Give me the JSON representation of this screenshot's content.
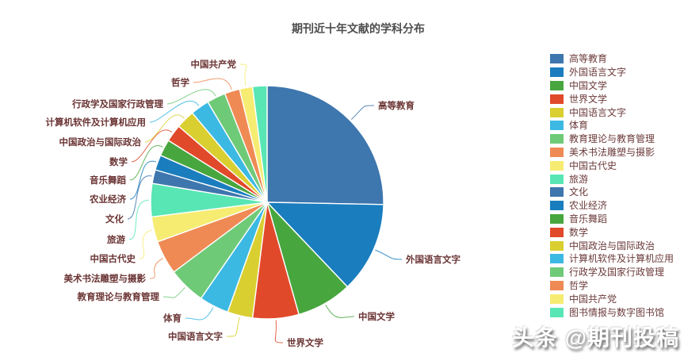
{
  "title": "期刊近十年文献的学科分布",
  "watermark": "头条 @期刊投稿",
  "colors": {
    "background": "#ffffff",
    "title_text": "#4d4d4d",
    "label_text": "#6b3434",
    "slice_border": "#ffffff",
    "palette_cycle": [
      "#3e76ae",
      "#1a7dbe",
      "#48a63e",
      "#e1492b",
      "#d9cf30",
      "#3cb9e3",
      "#6fca78",
      "#ef8a54",
      "#f6ec72",
      "#58e6b4"
    ]
  },
  "chart_data": {
    "type": "pie",
    "title": "期刊近十年文献的学科分布",
    "start_angle_deg": 90,
    "direction": "clockwise",
    "legend_position": "right",
    "value_unit": "percent (estimated from slice angles)",
    "series": [
      {
        "name": "高等教育",
        "value": 25.3
      },
      {
        "name": "外国语言文字",
        "value": 12.6
      },
      {
        "name": "中国文学",
        "value": 7.7
      },
      {
        "name": "世界文学",
        "value": 6.4
      },
      {
        "name": "中国语言文字",
        "value": 3.5
      },
      {
        "name": "体育",
        "value": 4.1
      },
      {
        "name": "教育理论与教育管理",
        "value": 5.2
      },
      {
        "name": "美术书法雕塑与摄影",
        "value": 4.7
      },
      {
        "name": "中国古代史",
        "value": 3.5
      },
      {
        "name": "旅游",
        "value": 4.6
      },
      {
        "name": "文化",
        "value": 1.9
      },
      {
        "name": "农业经济",
        "value": 2.1
      },
      {
        "name": "音乐舞蹈",
        "value": 2.3
      },
      {
        "name": "数学",
        "value": 2.4
      },
      {
        "name": "中国政治与国际政治",
        "value": 2.6
      },
      {
        "name": "计算机软件及计算机应用",
        "value": 2.6
      },
      {
        "name": "行政学及国家行政管理",
        "value": 2.6
      },
      {
        "name": "哲学",
        "value": 2.1
      },
      {
        "name": "中国共产党",
        "value": 1.8
      },
      {
        "name": "图书情报与数字图书馆",
        "value": 2.0
      }
    ]
  }
}
